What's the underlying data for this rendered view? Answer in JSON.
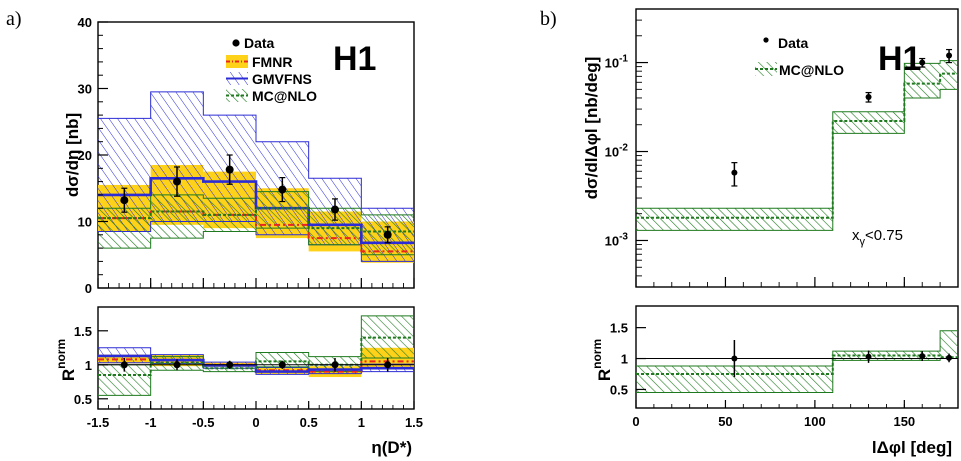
{
  "chart_data": [
    {
      "panel": "a)",
      "type": "histogram",
      "experiment": "H1",
      "xlabel": "η(D*)",
      "ylabel": "dσ/dη [nb]",
      "ratio_ylabel": "R",
      "ratio_ylabel_sup": "norm",
      "xlim": [
        -1.5,
        1.5
      ],
      "ylim": [
        0,
        40
      ],
      "ratio_ylim": [
        0.35,
        1.85
      ],
      "x_ticks": [
        "-1.5",
        "-1",
        "-0.5",
        "0",
        "0.5",
        "1",
        "1.5"
      ],
      "y_ticks": [
        "0",
        "10",
        "20",
        "30",
        "40"
      ],
      "ratio_y_ticks": [
        "0.5",
        "1",
        "1.5"
      ],
      "bins": [
        -1.5,
        -1.0,
        -0.5,
        0.0,
        0.5,
        1.0,
        1.5
      ],
      "legend": [
        "Data",
        "FMNR",
        "GMVFNS",
        "MC@NLO"
      ],
      "colors": {
        "FMNR": "#ffd21a",
        "FMNR_line": "#e8251f",
        "GMVFNS": "#2c2cd6",
        "MC@NLO": "#1f7a1f",
        "data": "#000000"
      },
      "series": [
        {
          "name": "Data",
          "x": [
            -1.25,
            -0.75,
            -0.25,
            0.25,
            0.75,
            1.25
          ],
          "y": [
            13.2,
            16.0,
            17.8,
            14.8,
            11.8,
            8.0
          ],
          "err": [
            1.8,
            2.2,
            2.2,
            1.8,
            1.6,
            1.2
          ]
        },
        {
          "name": "FMNR",
          "central": [
            10.5,
            11.5,
            11.0,
            9.5,
            7.5,
            5.5
          ],
          "lo": [
            8.5,
            9.5,
            9.0,
            7.5,
            5.5,
            3.8
          ],
          "hi": [
            15.5,
            18.5,
            17.5,
            15.0,
            11.5,
            10.0
          ]
        },
        {
          "name": "GMVFNS",
          "central": [
            14.0,
            16.5,
            16.0,
            12.0,
            9.5,
            6.8
          ],
          "lo": [
            8.5,
            10.0,
            10.0,
            8.0,
            6.5,
            4.0
          ],
          "hi": [
            25.5,
            29.5,
            26.0,
            22.0,
            16.5,
            12.0
          ]
        },
        {
          "name": "MC@NLO",
          "central": [
            10.5,
            11.5,
            11.0,
            12.0,
            9.0,
            8.5
          ],
          "lo": [
            6.0,
            7.5,
            8.5,
            9.0,
            6.5,
            5.0
          ],
          "hi": [
            12.0,
            14.0,
            13.5,
            14.5,
            12.0,
            11.0
          ]
        }
      ],
      "ratio": [
        {
          "name": "Data",
          "y": [
            1.0,
            1.0,
            1.0,
            1.0,
            1.0,
            1.0
          ],
          "err": [
            0.1,
            0.08,
            0.06,
            0.06,
            0.1,
            0.1
          ]
        },
        {
          "name": "FMNR",
          "central": [
            1.08,
            1.07,
            1.0,
            0.92,
            0.9,
            1.05
          ],
          "lo": [
            1.02,
            0.98,
            0.97,
            0.86,
            0.82,
            0.95
          ],
          "hi": [
            1.15,
            1.15,
            1.03,
            0.97,
            0.98,
            1.25
          ]
        },
        {
          "name": "GMVFNS",
          "central": [
            1.13,
            1.07,
            0.99,
            0.9,
            0.93,
            0.95
          ],
          "lo": [
            1.03,
            1.02,
            0.95,
            0.86,
            0.87,
            0.9
          ],
          "hi": [
            1.25,
            1.15,
            1.04,
            0.96,
            1.0,
            1.01
          ]
        },
        {
          "name": "MC@NLO",
          "central": [
            0.85,
            1.03,
            0.95,
            1.05,
            1.0,
            1.4
          ],
          "lo": [
            0.55,
            0.92,
            0.9,
            0.97,
            0.9,
            1.1
          ],
          "hi": [
            1.0,
            1.12,
            1.0,
            1.18,
            1.12,
            1.72
          ]
        }
      ]
    },
    {
      "panel": "b)",
      "type": "histogram",
      "experiment": "H1",
      "xlabel": "lΔφl [deg]",
      "ylabel": "dσ/dlΔφl [nb/deg]",
      "ratio_ylabel": "R",
      "ratio_ylabel_sup": "norm",
      "annotation": "x",
      "annotation_sub": "γ",
      "annotation_rest": "<0.75",
      "xlim": [
        0,
        180
      ],
      "ylim_log": [
        0.0003,
        0.4
      ],
      "log_y": true,
      "ratio_ylim": [
        0.2,
        1.85
      ],
      "x_ticks": [
        "0",
        "50",
        "100",
        "150"
      ],
      "y_ticks": [
        "10",
        "10",
        "10"
      ],
      "y_tick_exponents": [
        "-3",
        "-2",
        "-1"
      ],
      "ratio_y_ticks": [
        "0.5",
        "1",
        "1.5"
      ],
      "bins": [
        0,
        110,
        150,
        170,
        180
      ],
      "legend": [
        "Data",
        "MC@NLO"
      ],
      "colors": {
        "MC@NLO": "#1f7a1f",
        "data": "#000000"
      },
      "series": [
        {
          "name": "Data",
          "x": [
            55,
            130,
            160,
            175
          ],
          "y": [
            0.0058,
            0.041,
            0.1,
            0.12
          ],
          "err_lo": [
            0.0017,
            0.005,
            0.011,
            0.02
          ],
          "err_hi": [
            0.0017,
            0.005,
            0.011,
            0.02
          ]
        },
        {
          "name": "MC@NLO",
          "central": [
            0.0018,
            0.022,
            0.058,
            0.075
          ],
          "lo": [
            0.0013,
            0.016,
            0.04,
            0.05
          ],
          "hi": [
            0.0023,
            0.028,
            0.098,
            0.105
          ]
        }
      ],
      "ratio": [
        {
          "name": "Data",
          "y": [
            1.0,
            1.03,
            1.04,
            1.01
          ],
          "err": [
            0.3,
            0.1,
            0.08,
            0.07
          ]
        },
        {
          "name": "MC@NLO",
          "central": [
            0.75,
            1.05,
            1.05,
            1.02
          ],
          "lo": [
            0.45,
            0.97,
            0.97,
            1.0
          ],
          "hi": [
            0.88,
            1.12,
            1.12,
            1.45
          ]
        }
      ]
    }
  ]
}
